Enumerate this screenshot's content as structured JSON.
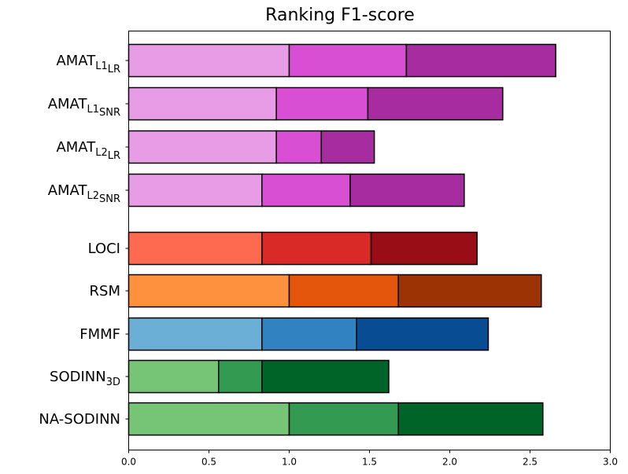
{
  "chart_data": {
    "type": "bar",
    "orientation": "horizontal",
    "stacked": true,
    "title": "Ranking F1-score",
    "xlabel": "",
    "ylabel": "",
    "xlim": [
      0,
      3.0
    ],
    "xticks": [
      "0.0",
      "0.5",
      "1.0",
      "1.5",
      "2.0",
      "2.5",
      "3.0"
    ],
    "grid": false,
    "categories": [
      {
        "base": "AMAT",
        "sub": "L1",
        "sub2": "LR",
        "color_set": [
          "#e89ce6",
          "#d84fd4",
          "#a62ca0"
        ],
        "segments": [
          1.0,
          0.73,
          0.93
        ]
      },
      {
        "base": "AMAT",
        "sub": "L1",
        "sub2": "SNR",
        "color_set": [
          "#e89ce6",
          "#d84fd4",
          "#a62ca0"
        ],
        "segments": [
          0.92,
          0.57,
          0.84
        ]
      },
      {
        "base": "AMAT",
        "sub": "L2",
        "sub2": "LR",
        "color_set": [
          "#e89ce6",
          "#d84fd4",
          "#a62ca0"
        ],
        "segments": [
          0.92,
          0.28,
          0.33
        ]
      },
      {
        "base": "AMAT",
        "sub": "L2",
        "sub2": "SNR",
        "color_set": [
          "#e89ce6",
          "#d84fd4",
          "#a62ca0"
        ],
        "segments": [
          0.83,
          0.55,
          0.71
        ]
      },
      {
        "base": "LOCI",
        "sub": "",
        "sub2": "",
        "color_set": [
          "#fd6a4f",
          "#da2a27",
          "#990d17"
        ],
        "segments": [
          0.83,
          0.68,
          0.66
        ]
      },
      {
        "base": "RSM",
        "sub": "",
        "sub2": "",
        "color_set": [
          "#fd913e",
          "#e4560b",
          "#9c3305"
        ],
        "segments": [
          1.0,
          0.68,
          0.89
        ]
      },
      {
        "base": "FMMF",
        "sub": "",
        "sub2": "",
        "color_set": [
          "#6baed6",
          "#3082c0",
          "#084c94"
        ],
        "segments": [
          0.83,
          0.59,
          0.82
        ]
      },
      {
        "base": "SODINN",
        "sub": "3D",
        "sub2": "",
        "color_set": [
          "#76c576",
          "#329a51",
          "#006428"
        ],
        "segments": [
          0.56,
          0.27,
          0.79
        ]
      },
      {
        "base": "NA-SODINN",
        "sub": "",
        "sub2": "",
        "color_set": [
          "#76c576",
          "#329a51",
          "#006428"
        ],
        "segments": [
          1.0,
          0.68,
          0.9
        ]
      }
    ]
  }
}
